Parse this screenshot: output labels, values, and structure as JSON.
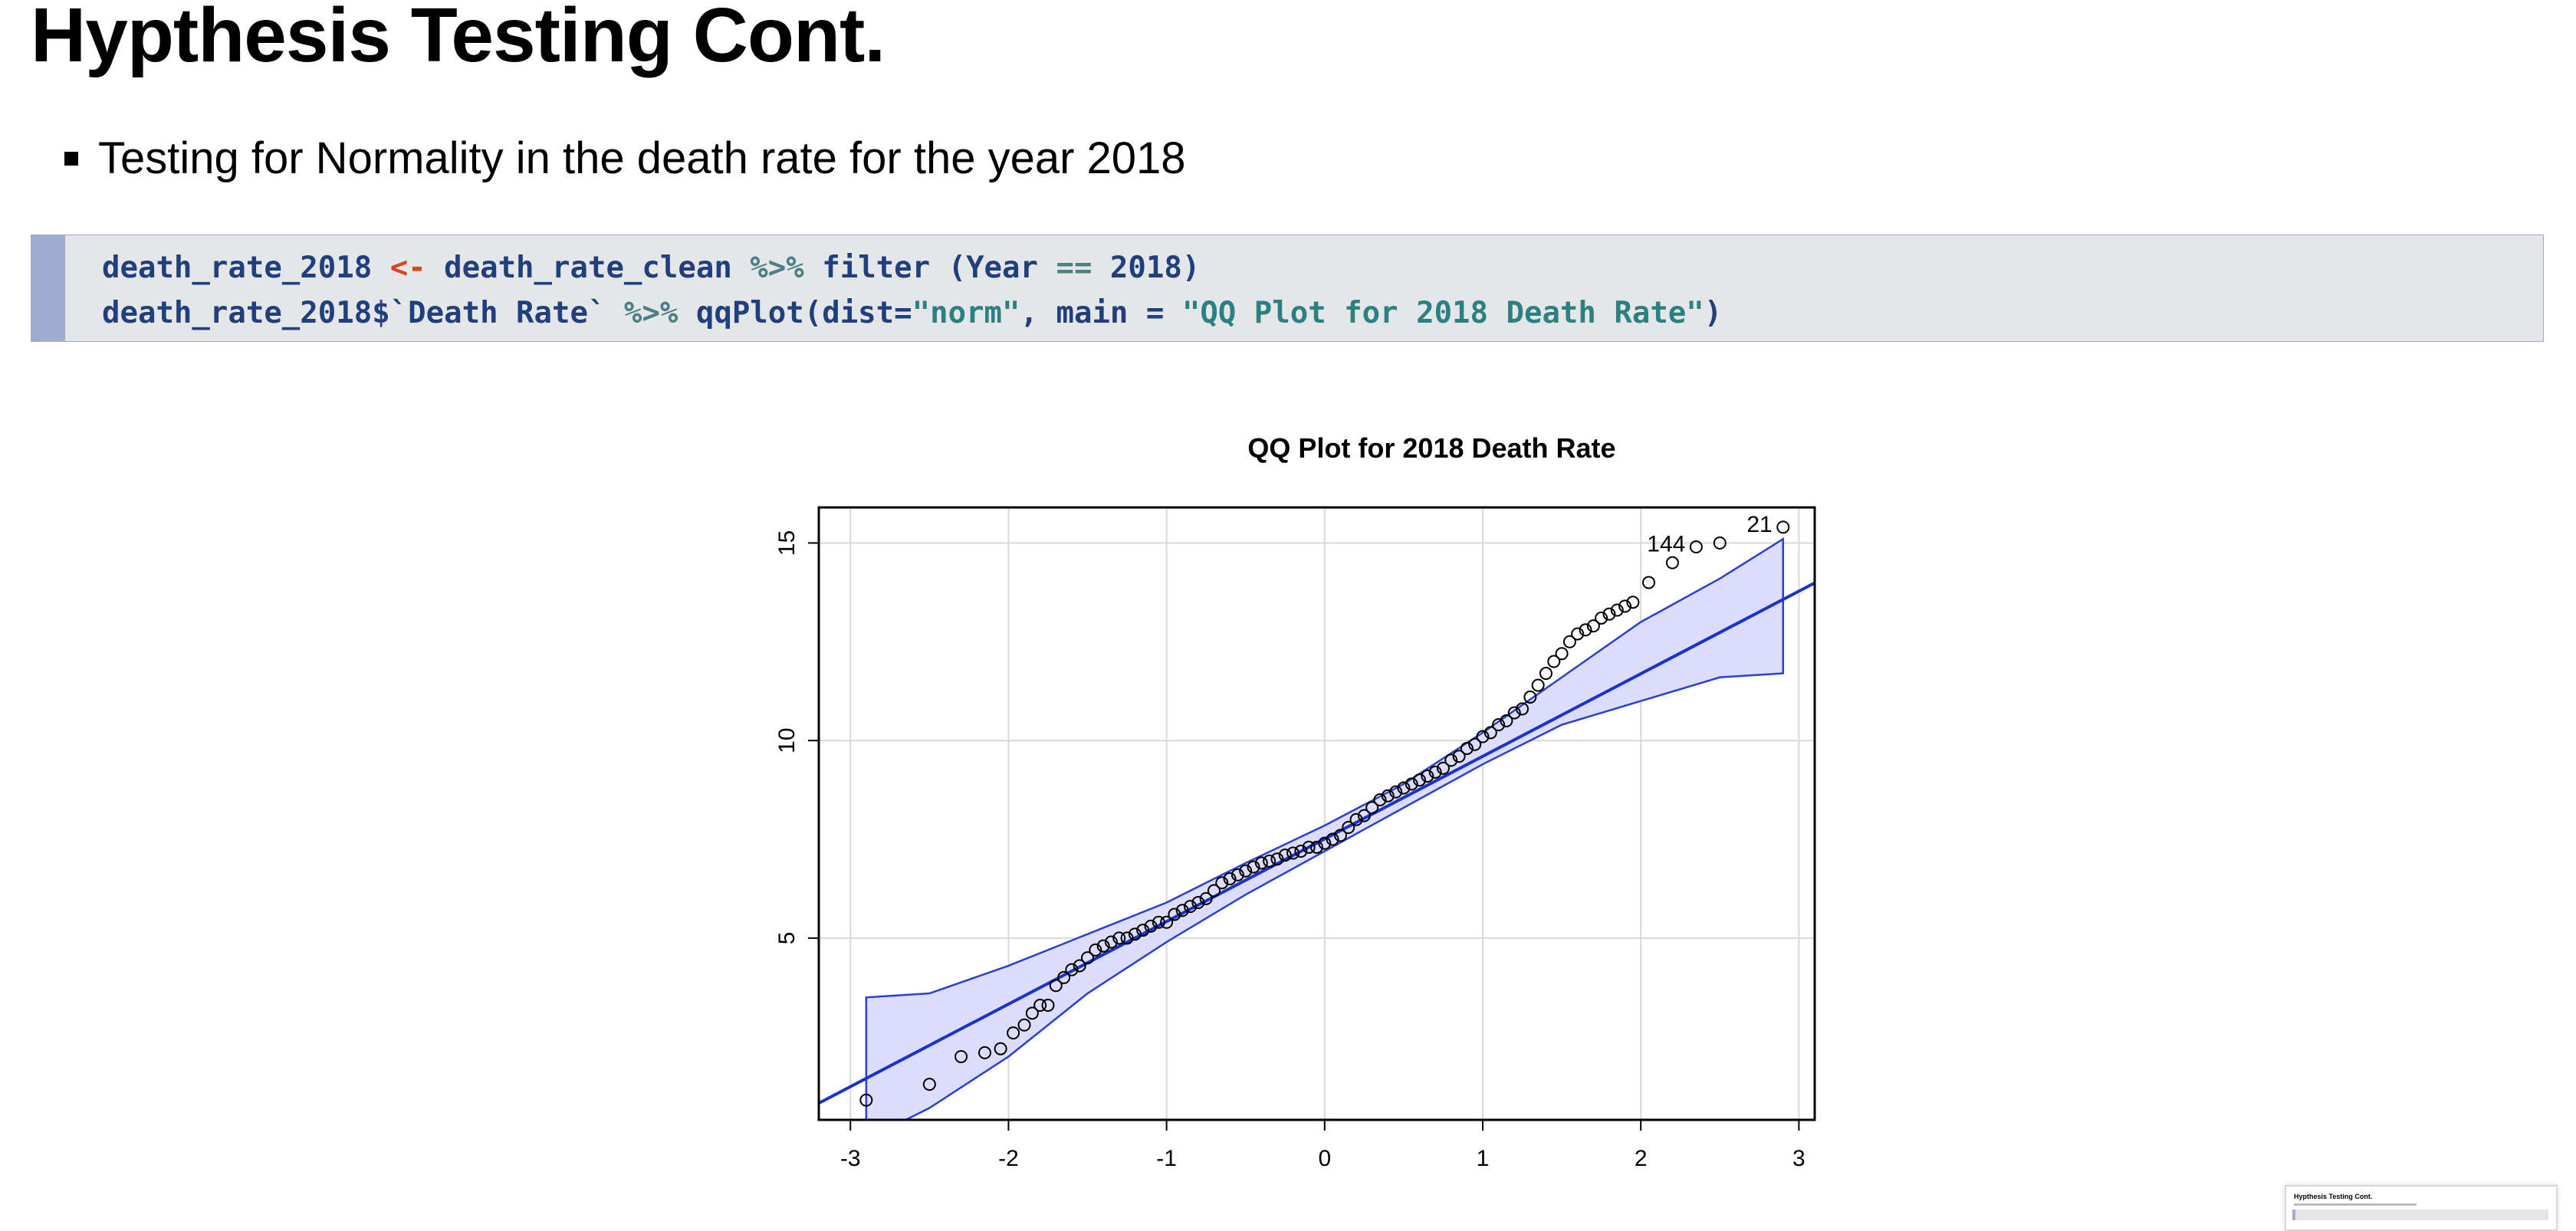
{
  "slide": {
    "title": "Hypthesis Testing Cont.",
    "bullet": "Testing for Normality in the death rate for the year 2018"
  },
  "code": {
    "line1": {
      "var": "death_rate_2018 ",
      "assign": "<-",
      "mid": " death_rate_clean ",
      "pipe": "%>%",
      "call": " filter (Year ",
      "eq": "==",
      "year": " 2018",
      "close": ")"
    },
    "line2": {
      "obj": "death_rate_2018$`Death Rate` ",
      "pipe": "%>%",
      "call": " qqPlot(dist=",
      "dist": "\"norm\"",
      "args": ", main = ",
      "title": "\"QQ Plot for 2018 Death Rate\"",
      "close": ")"
    }
  },
  "chart_data": {
    "type": "scatter",
    "title": "QQ Plot for 2018 Death Rate",
    "xlabel": "",
    "ylabel": "",
    "xlim": [
      -3.2,
      3.1
    ],
    "ylim": [
      0.4,
      15.9
    ],
    "x_ticks": [
      "-3",
      "-2",
      "-1",
      "0",
      "1",
      "2",
      "3"
    ],
    "y_ticks": [
      "5",
      "10",
      "15"
    ],
    "grid": true,
    "reference_line": {
      "intercept": 7.51,
      "slope": 2.09
    },
    "confidence_band": {
      "x": [
        -2.9,
        -2.5,
        -2,
        -1.5,
        -1,
        -0.5,
        0,
        0.5,
        1,
        1.5,
        2,
        2.5,
        2.9
      ],
      "lower": [
        -0.1,
        0.7,
        2.0,
        3.6,
        4.9,
        6.1,
        7.2,
        8.3,
        9.4,
        10.4,
        11.0,
        11.6,
        11.7
      ],
      "upper": [
        3.5,
        3.6,
        4.3,
        5.1,
        5.9,
        6.9,
        7.85,
        8.9,
        10.2,
        11.6,
        13.0,
        14.1,
        15.1
      ]
    },
    "points": {
      "x": [
        -2.9,
        -2.5,
        -2.3,
        -2.15,
        -2.05,
        -1.97,
        -1.9,
        -1.85,
        -1.8,
        -1.75,
        -1.7,
        -1.65,
        -1.6,
        -1.55,
        -1.5,
        -1.45,
        -1.4,
        -1.35,
        -1.3,
        -1.25,
        -1.2,
        -1.15,
        -1.1,
        -1.05,
        -1.0,
        -0.95,
        -0.9,
        -0.85,
        -0.8,
        -0.75,
        -0.7,
        -0.65,
        -0.6,
        -0.55,
        -0.5,
        -0.45,
        -0.4,
        -0.35,
        -0.3,
        -0.25,
        -0.2,
        -0.15,
        -0.1,
        -0.05,
        0.0,
        0.05,
        0.1,
        0.15,
        0.2,
        0.25,
        0.3,
        0.35,
        0.4,
        0.45,
        0.5,
        0.55,
        0.6,
        0.65,
        0.7,
        0.75,
        0.8,
        0.85,
        0.9,
        0.95,
        1.0,
        1.05,
        1.1,
        1.15,
        1.2,
        1.25,
        1.3,
        1.35,
        1.4,
        1.45,
        1.5,
        1.55,
        1.6,
        1.65,
        1.7,
        1.75,
        1.8,
        1.85,
        1.9,
        1.95,
        2.05,
        2.2,
        2.35,
        2.5,
        2.9
      ],
      "y": [
        0.9,
        1.3,
        2.0,
        2.1,
        2.2,
        2.6,
        2.8,
        3.1,
        3.3,
        3.3,
        3.8,
        4.0,
        4.2,
        4.3,
        4.5,
        4.7,
        4.8,
        4.9,
        5.0,
        5.0,
        5.1,
        5.2,
        5.3,
        5.4,
        5.4,
        5.6,
        5.7,
        5.8,
        5.9,
        6.0,
        6.2,
        6.4,
        6.5,
        6.6,
        6.7,
        6.8,
        6.9,
        6.95,
        7.0,
        7.1,
        7.15,
        7.2,
        7.3,
        7.3,
        7.4,
        7.5,
        7.6,
        7.8,
        8.0,
        8.1,
        8.3,
        8.5,
        8.6,
        8.7,
        8.8,
        8.9,
        9.0,
        9.1,
        9.2,
        9.3,
        9.5,
        9.6,
        9.8,
        9.9,
        10.1,
        10.2,
        10.4,
        10.5,
        10.7,
        10.8,
        11.1,
        11.4,
        11.7,
        12.0,
        12.2,
        12.5,
        12.7,
        12.8,
        12.9,
        13.1,
        13.2,
        13.3,
        13.4,
        13.5,
        14.0,
        14.5,
        14.9,
        15.0,
        15.4
      ]
    },
    "labeled_points": [
      {
        "label": "144",
        "x": 2.35,
        "y": 14.9
      },
      {
        "label": "21",
        "x": 2.9,
        "y": 15.4
      }
    ],
    "colors": {
      "line": "#1a33d0",
      "band_fill": "#dcdcfb",
      "band_edge": "#2b3fd0",
      "points": "#000000",
      "grid": "#d9d9d9"
    }
  },
  "thumbnail": {
    "title": "Hypthesis Testing Cont."
  }
}
